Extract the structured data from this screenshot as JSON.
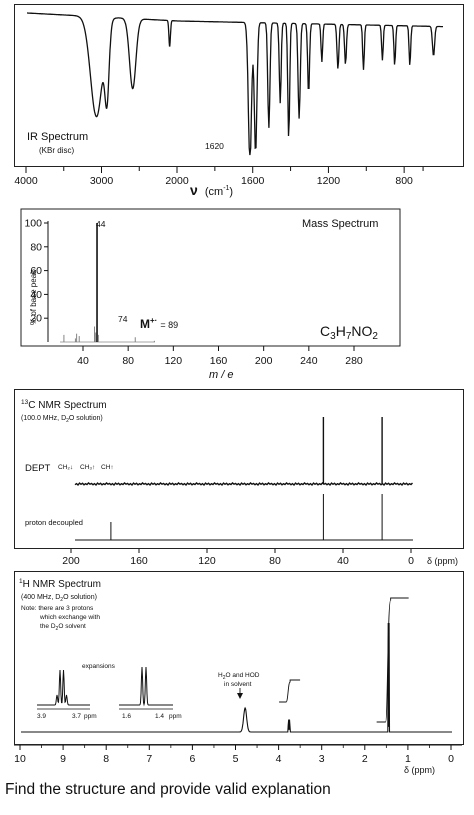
{
  "question": "Find the structure and provide valid explanation",
  "ir": {
    "title": "IR Spectrum",
    "subtitle": "(KBr disc)",
    "annotation": "1620",
    "xlabel_main": "ν",
    "xlabel_unit": "(cm",
    "xlabel_exp": "-1",
    "xlabel_close": ")",
    "ticks": [
      "4000",
      "3000",
      "2000",
      "1600",
      "1200",
      "800"
    ]
  },
  "ms": {
    "title": "Mass Spectrum",
    "ylabel": "% of base peak",
    "xlabel": "m / e",
    "yticks": [
      "100",
      "80",
      "60",
      "40",
      "20"
    ],
    "xticks": [
      "40",
      "80",
      "120",
      "160",
      "200",
      "240",
      "280"
    ],
    "peak_label_44": "44",
    "peak_label_74": "74",
    "ion_label": "M",
    "ion_sup": "+·",
    "ion_value": "= 89",
    "formula_parts": [
      "C",
      "3",
      "H",
      "7",
      "NO",
      "2"
    ]
  },
  "c13": {
    "title_sup": "13",
    "title": "C NMR Spectrum",
    "subtitle_a": "(100.0 MHz, D",
    "subtitle_sub": "2",
    "subtitle_b": "O solution)",
    "dept_label": "DEPT",
    "dept_legend": [
      "CH₂↓",
      "CH₃↑",
      "CH↑"
    ],
    "decoupled_label": "proton decoupled",
    "xticks": [
      "200",
      "160",
      "120",
      "80",
      "40",
      "0"
    ],
    "axis_unit": "δ (ppm)"
  },
  "h1": {
    "title_sup": "1",
    "title": "H NMR Spectrum",
    "subtitle_a": "(400 MHz,  D",
    "subtitle_sub": "2",
    "subtitle_b": "O solution)",
    "note_line1": "Note:  there are  3 protons",
    "note_line2": "which exchange with",
    "note_line3a": "the D",
    "note_line3sub": "2",
    "note_line3b": "O solvent",
    "expansions_label": "expansions",
    "exp1_ticks": [
      "3.9",
      "3.7"
    ],
    "exp2_ticks": [
      "1.6",
      "1.4"
    ],
    "ppm": "ppm",
    "solvent_line1a": "H",
    "solvent_line1sub": "2",
    "solvent_line1b": "O and HOD",
    "solvent_line2": "in solvent",
    "xticks": [
      "10",
      "9",
      "8",
      "7",
      "6",
      "5",
      "4",
      "3",
      "2",
      "1",
      "0"
    ],
    "axis_unit": "δ (ppm)"
  },
  "chart_data": [
    {
      "type": "line",
      "panel": "IR spectrum",
      "x_unit": "cm-1",
      "xlim": [
        4000,
        600
      ],
      "x_scale": "split at 2000 cm-1",
      "y": "transmittance",
      "bands_cm-1": [
        3080,
        2940,
        2600,
        2110,
        1620,
        1590,
        1520,
        1460,
        1415,
        1360,
        1310,
        1240,
        1155,
        1115,
        1020,
        920,
        855,
        775,
        650
      ],
      "annotated": [
        1620
      ]
    },
    {
      "type": "bar",
      "panel": "Mass spectrum",
      "x_unit": "m/e",
      "xlim": [
        0,
        300
      ],
      "ylim": [
        0,
        100
      ],
      "x": [
        18,
        27,
        28,
        30,
        42,
        43,
        44,
        45,
        74,
        89
      ],
      "values": [
        6,
        3,
        7,
        5,
        13,
        8,
        100,
        6,
        4,
        1
      ],
      "labeled_peaks": [
        44,
        74
      ],
      "molecular_ion": 89,
      "formula": "C3H7NO2"
    },
    {
      "type": "line",
      "panel": "13C NMR spectrum",
      "x_unit": "ppm",
      "xlim": [
        200,
        0
      ],
      "proton_decoupled_peaks": [
        176.5,
        51.5,
        17.0
      ],
      "dept_peaks": [
        51.5,
        17.0
      ]
    },
    {
      "type": "line",
      "panel": "1H NMR spectrum",
      "x_unit": "ppm",
      "xlim": [
        10,
        0
      ],
      "peaks": [
        {
          "shift": 4.8,
          "assignment": "H2O and HOD in solvent"
        },
        {
          "shift": 3.78,
          "multiplicity": "quartet",
          "integration": 1
        },
        {
          "shift": 1.47,
          "multiplicity": "doublet",
          "integration": 3
        }
      ]
    }
  ]
}
